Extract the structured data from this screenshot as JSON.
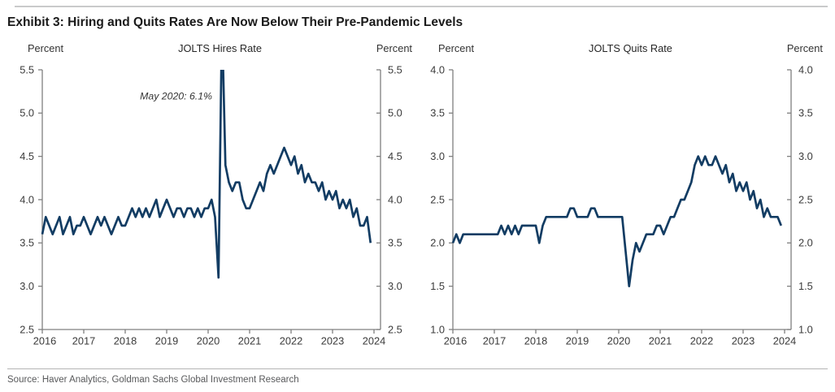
{
  "page": {
    "title": "Exhibit 3: Hiring and Quits Rates Are Now Below Their Pre-Pandemic Levels",
    "source": "Source: Haver Analytics, Goldman Sachs Global Investment Research"
  },
  "style": {
    "line_color": "#123C63",
    "axis_color": "#808080",
    "tick_label_color": "#3b3b3b",
    "annotation_color": "#333333"
  },
  "chart_data": [
    {
      "type": "line",
      "title": "JOLTS Hires Rate",
      "unit_label_left": "Percent",
      "unit_label_right": "Percent",
      "ylim": [
        2.5,
        5.5
      ],
      "yticks": [
        2.5,
        3.0,
        3.5,
        4.0,
        4.5,
        5.0,
        5.5
      ],
      "x_tick_labels": [
        "2016",
        "2017",
        "2018",
        "2019",
        "2020",
        "2021",
        "2022",
        "2023",
        "2024"
      ],
      "x_frequency": "monthly",
      "x_start": "2016-01",
      "x_end": "2023-12",
      "grid": false,
      "legend": "none",
      "line_color": "#123C63",
      "annotation": {
        "text": "May 2020: 6.1%",
        "x_month": 52,
        "y_value": 5.16
      },
      "values": [
        3.6,
        3.8,
        3.7,
        3.6,
        3.7,
        3.8,
        3.6,
        3.7,
        3.8,
        3.6,
        3.7,
        3.7,
        3.8,
        3.7,
        3.6,
        3.7,
        3.8,
        3.7,
        3.8,
        3.7,
        3.6,
        3.7,
        3.8,
        3.7,
        3.7,
        3.8,
        3.9,
        3.8,
        3.9,
        3.8,
        3.9,
        3.8,
        3.9,
        4.0,
        3.8,
        3.9,
        4.0,
        3.9,
        3.8,
        3.9,
        3.9,
        3.8,
        3.9,
        3.9,
        3.8,
        3.9,
        3.8,
        3.9,
        3.9,
        4.0,
        3.8,
        3.1,
        6.1,
        4.4,
        4.2,
        4.1,
        4.2,
        4.2,
        4.0,
        3.9,
        3.9,
        4.0,
        4.1,
        4.2,
        4.1,
        4.3,
        4.4,
        4.3,
        4.4,
        4.5,
        4.6,
        4.5,
        4.4,
        4.5,
        4.3,
        4.4,
        4.2,
        4.3,
        4.2,
        4.2,
        4.1,
        4.2,
        4.0,
        4.1,
        4.0,
        4.1,
        3.9,
        4.0,
        3.9,
        4.0,
        3.8,
        3.9,
        3.7,
        3.7,
        3.8,
        3.5
      ]
    },
    {
      "type": "line",
      "title": "JOLTS Quits Rate",
      "unit_label_left": "Percent",
      "unit_label_right": "Percent",
      "ylim": [
        1.0,
        4.0
      ],
      "yticks": [
        1.0,
        1.5,
        2.0,
        2.5,
        3.0,
        3.5,
        4.0
      ],
      "x_tick_labels": [
        "2016",
        "2017",
        "2018",
        "2019",
        "2020",
        "2021",
        "2022",
        "2023",
        "2024"
      ],
      "x_frequency": "monthly",
      "x_start": "2016-01",
      "x_end": "2023-12",
      "grid": false,
      "legend": "none",
      "line_color": "#123C63",
      "values": [
        2.0,
        2.1,
        2.0,
        2.1,
        2.1,
        2.1,
        2.1,
        2.1,
        2.1,
        2.1,
        2.1,
        2.1,
        2.1,
        2.1,
        2.2,
        2.1,
        2.2,
        2.1,
        2.2,
        2.1,
        2.2,
        2.2,
        2.2,
        2.2,
        2.2,
        2.0,
        2.2,
        2.3,
        2.3,
        2.3,
        2.3,
        2.3,
        2.3,
        2.3,
        2.4,
        2.4,
        2.3,
        2.3,
        2.3,
        2.3,
        2.4,
        2.4,
        2.3,
        2.3,
        2.3,
        2.3,
        2.3,
        2.3,
        2.3,
        2.3,
        1.9,
        1.5,
        1.8,
        2.0,
        1.9,
        2.0,
        2.1,
        2.1,
        2.1,
        2.2,
        2.2,
        2.1,
        2.2,
        2.3,
        2.3,
        2.4,
        2.5,
        2.5,
        2.6,
        2.7,
        2.9,
        3.0,
        2.9,
        3.0,
        2.9,
        2.9,
        3.0,
        2.9,
        2.8,
        2.9,
        2.7,
        2.8,
        2.6,
        2.7,
        2.6,
        2.7,
        2.5,
        2.6,
        2.4,
        2.5,
        2.3,
        2.4,
        2.3,
        2.3,
        2.3,
        2.2
      ]
    }
  ]
}
